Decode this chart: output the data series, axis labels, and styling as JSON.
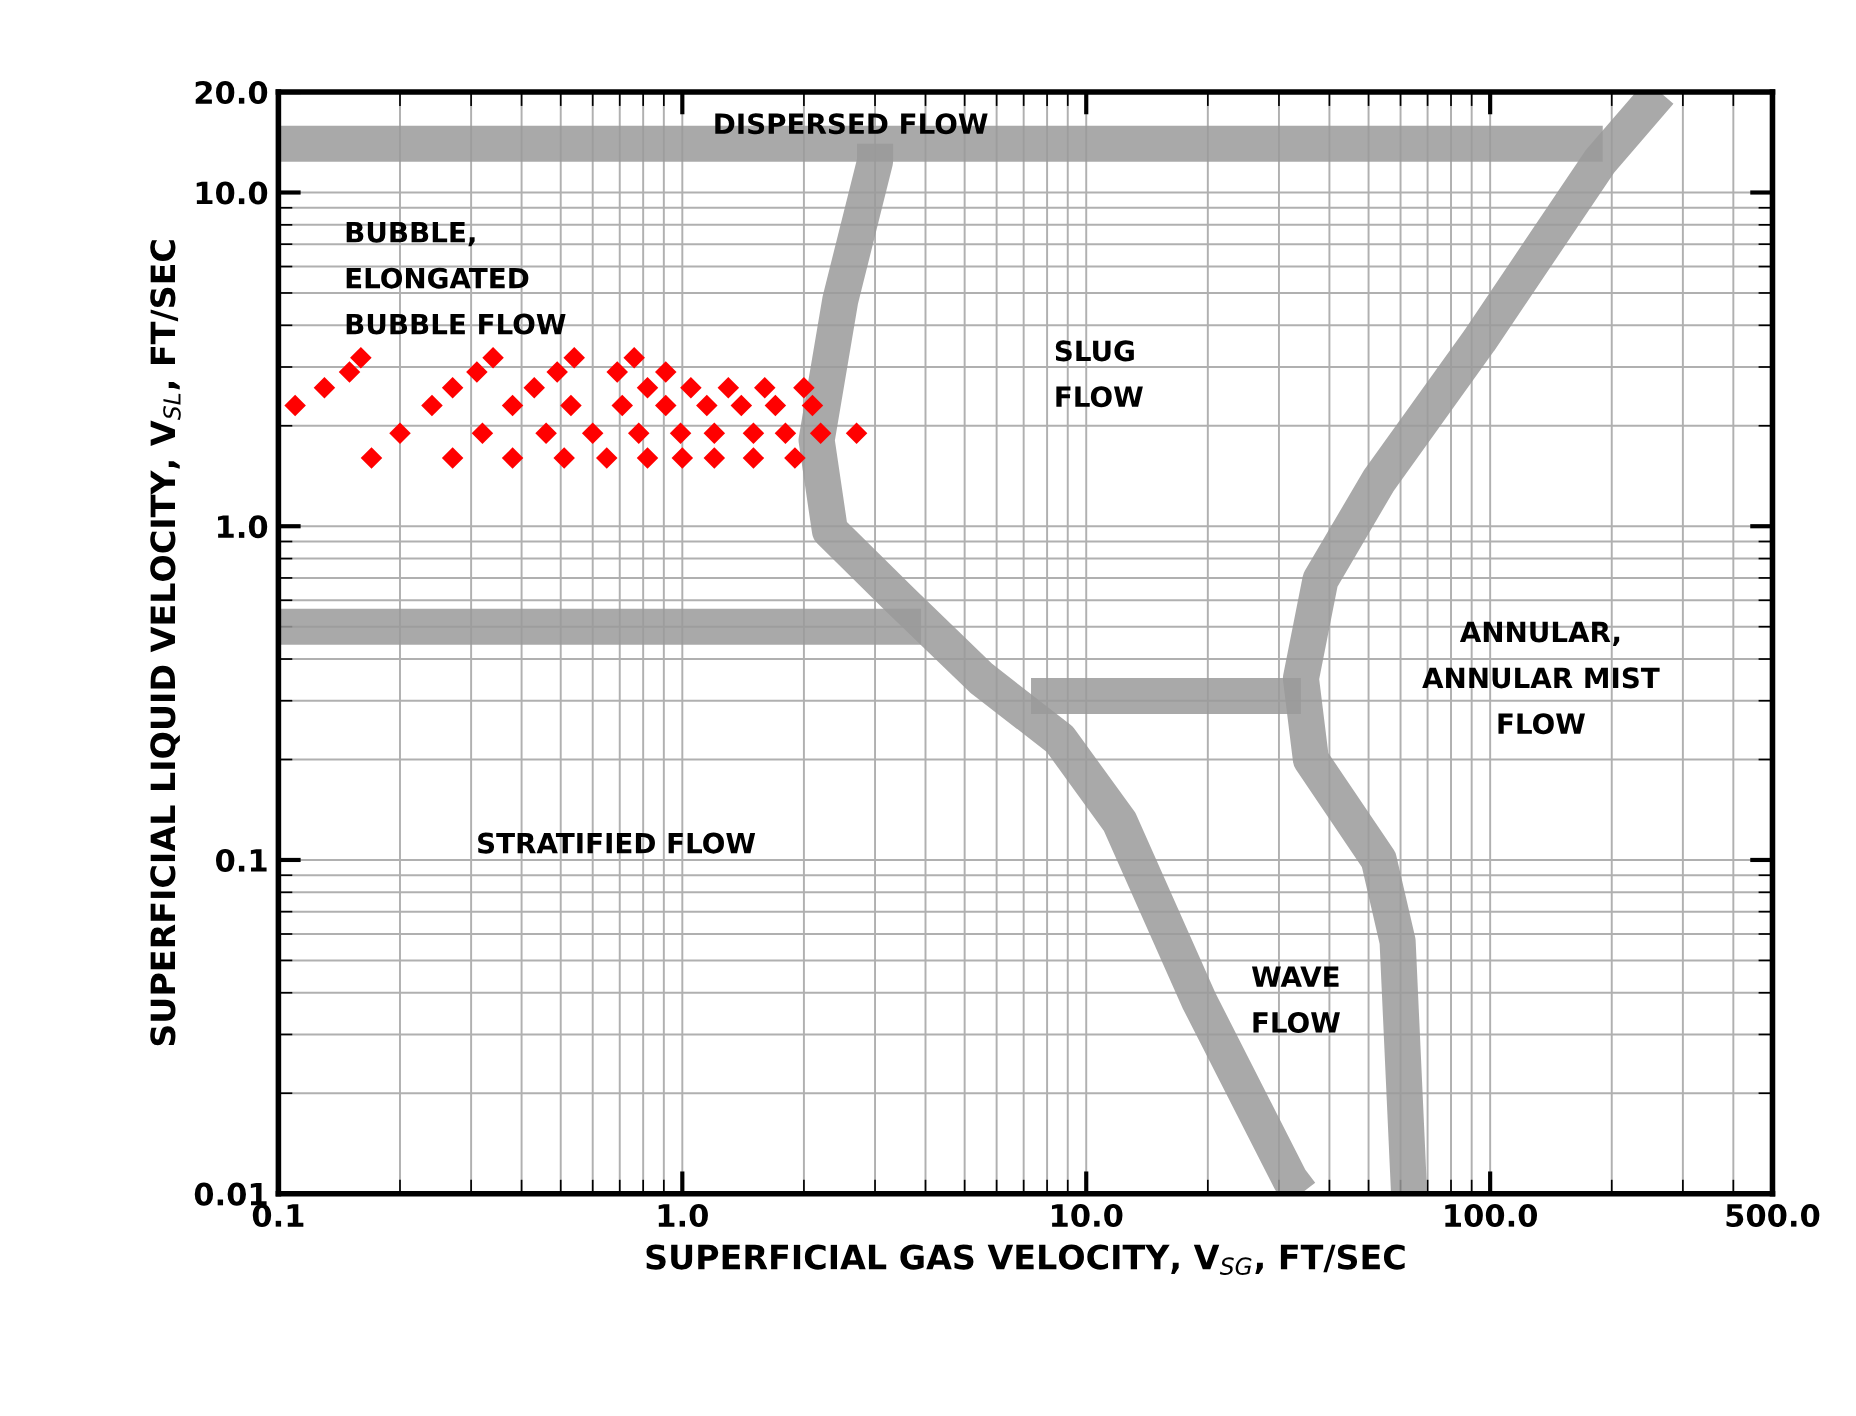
{
  "chart_data": {
    "type": "scatter",
    "xlabel": "SUPERFICIAL GAS VELOCITY, V$_{SG}$, FT/SEC",
    "ylabel": "SUPERFICIAL LIQUID VELOCITY, V$_{SL}$, FT/SEC",
    "log": "xy",
    "xlim": [
      0.1,
      500
    ],
    "ylim": [
      0.01,
      20
    ],
    "xticks": [
      {
        "value": 0.1,
        "label": "0.1"
      },
      {
        "value": 1,
        "label": "1.0"
      },
      {
        "value": 10,
        "label": "10.0"
      },
      {
        "value": 100,
        "label": "100.0"
      },
      {
        "value": 500,
        "label": "500.0"
      }
    ],
    "yticks": [
      {
        "value": 0.01,
        "label": "0.01"
      },
      {
        "value": 0.1,
        "label": "0.1"
      },
      {
        "value": 1,
        "label": "1.0"
      },
      {
        "value": 10,
        "label": "10.0"
      },
      {
        "value": 20,
        "label": "20.0"
      }
    ],
    "grid": true,
    "legend": false,
    "series": [
      {
        "type": "line",
        "color": "#9a9a9a",
        "x": [
          0.1,
          190
        ],
        "values": [
          14,
          14
        ]
      },
      {
        "type": "line",
        "color": "#9a9a9a",
        "x": [
          263,
          187,
          94,
          53,
          38,
          34,
          36,
          53,
          59,
          63
        ],
        "values": [
          20,
          12.4,
          3.6,
          1.37,
          0.69,
          0.35,
          0.2,
          0.1,
          0.057,
          0.01
        ]
      },
      {
        "type": "line",
        "color": "#9a9a9a",
        "x": [
          3.0,
          3.0,
          2.46,
          2.15,
          2.32,
          3.47,
          5.5,
          8.6,
          12.1,
          19,
          32,
          34
        ],
        "values": [
          14,
          12.4,
          4.75,
          1.81,
          0.97,
          0.6,
          0.35,
          0.23,
          0.13,
          0.038,
          0.011,
          0.01
        ]
      },
      {
        "type": "line",
        "color": "#9a9a9a",
        "x": [
          0.1,
          3.9
        ],
        "values": [
          0.5,
          0.5
        ]
      },
      {
        "type": "line",
        "color": "#9a9a9a",
        "x": [
          7.3,
          34
        ],
        "values": [
          0.31,
          0.31
        ]
      },
      {
        "color": "#ff0000",
        "marker": "diamond",
        "x": [
          0.11,
          0.13,
          0.15,
          0.16,
          0.17,
          0.2,
          0.24,
          0.27,
          0.27,
          0.31,
          0.34,
          0.32,
          0.38,
          0.38,
          0.43,
          0.49,
          0.54,
          0.46,
          0.53,
          0.51,
          0.6,
          0.69,
          0.76,
          0.71,
          0.82,
          0.65,
          0.78,
          0.82,
          0.91,
          0.91,
          0.99,
          1.0,
          1.05,
          1.15,
          1.2,
          1.2,
          1.3,
          1.4,
          1.5,
          1.5,
          1.6,
          1.7,
          1.8,
          1.9,
          2.0,
          2.1,
          2.2,
          2.7
        ],
        "values": [
          2.3,
          2.6,
          2.9,
          3.2,
          1.6,
          1.9,
          2.3,
          2.6,
          1.6,
          2.9,
          3.2,
          1.9,
          2.3,
          1.6,
          2.6,
          2.9,
          3.2,
          1.9,
          2.3,
          1.6,
          1.9,
          2.9,
          3.2,
          2.3,
          2.6,
          1.6,
          1.9,
          1.6,
          2.9,
          2.3,
          1.9,
          1.6,
          2.6,
          2.3,
          1.9,
          1.6,
          2.6,
          2.3,
          1.9,
          1.6,
          2.6,
          2.3,
          1.9,
          1.6,
          2.6,
          2.3,
          1.9,
          1.9
        ]
      }
    ],
    "annotations": [
      "DISPERSED FLOW",
      "BUBBLE,\nELONGATED\nBUBBLE FLOW",
      "SLUG\nFLOW",
      "ANNULAR,\nANNULAR MIST\nFLOW",
      "STRATIFIED FLOW",
      "WAVE\nFLOW"
    ]
  }
}
